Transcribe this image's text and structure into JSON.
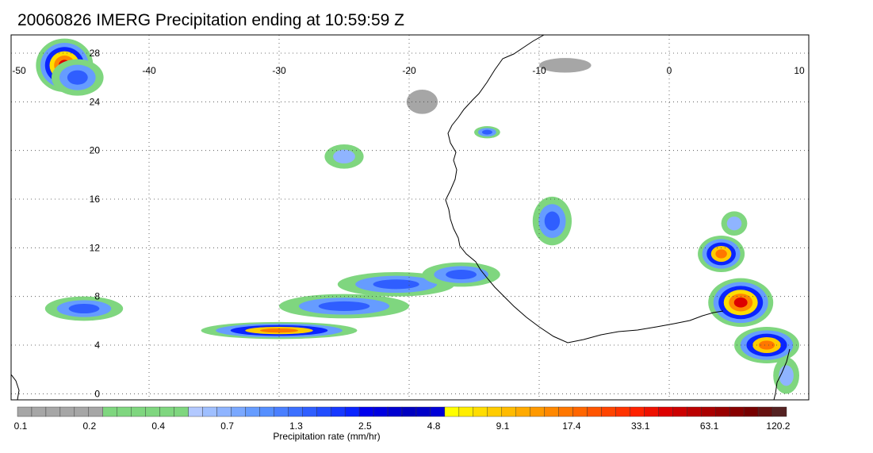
{
  "title": "20060826 IMERG Precipitation ending at 10:59:59 Z",
  "map": {
    "lon_range": [
      -50,
      10
    ],
    "lat_range": [
      -0.5,
      29.5
    ],
    "lon_ticks": [
      -50,
      -40,
      -30,
      -20,
      -10,
      0,
      10
    ],
    "lon_tick_labels": [
      "-50",
      "-40",
      "-30",
      "-20",
      "-10",
      "0",
      "10"
    ],
    "lat_ticks": [
      0,
      4,
      8,
      12,
      16,
      20,
      24,
      28
    ],
    "lat_tick_labels": [
      "0",
      "4",
      "8",
      "12",
      "16",
      "20",
      "24",
      "28"
    ],
    "grid": "dotted",
    "coastline_color": "#000000",
    "precip_cells": [
      {
        "lon": -46.5,
        "lat": 27.0,
        "intensity": 4,
        "rlon": 2.2,
        "rlat": 2.2
      },
      {
        "lon": -45.5,
        "lat": 26.0,
        "intensity": 2,
        "rlon": 2.0,
        "rlat": 1.5
      },
      {
        "lon": -30.0,
        "lat": 5.2,
        "intensity": 3,
        "rlon": 6.0,
        "rlat": 0.7
      },
      {
        "lon": -25.0,
        "lat": 7.2,
        "intensity": 2,
        "rlon": 5.0,
        "rlat": 1.0
      },
      {
        "lon": -21.0,
        "lat": 9.0,
        "intensity": 2,
        "rlon": 4.5,
        "rlat": 1.0
      },
      {
        "lon": -16.0,
        "lat": 9.8,
        "intensity": 2,
        "rlon": 3.0,
        "rlat": 1.0
      },
      {
        "lon": -45.0,
        "lat": 7.0,
        "intensity": 2,
        "rlon": 3.0,
        "rlat": 1.0
      },
      {
        "lon": -9.0,
        "lat": 14.2,
        "intensity": 2,
        "rlon": 1.5,
        "rlat": 2.0
      },
      {
        "lon": -25.0,
        "lat": 19.5,
        "intensity": 1,
        "rlon": 1.5,
        "rlat": 1.0
      },
      {
        "lon": -19.0,
        "lat": 24.0,
        "intensity": 0,
        "rlon": 1.2,
        "rlat": 1.0
      },
      {
        "lon": -14.0,
        "lat": 21.5,
        "intensity": 2,
        "rlon": 1.0,
        "rlat": 0.5
      },
      {
        "lon": -8.0,
        "lat": 27.0,
        "intensity": 0,
        "rlon": 2.0,
        "rlat": 0.6
      },
      {
        "lon": 5.5,
        "lat": 7.5,
        "intensity": 4,
        "rlon": 2.5,
        "rlat": 2.0
      },
      {
        "lon": 4.0,
        "lat": 11.5,
        "intensity": 3,
        "rlon": 1.8,
        "rlat": 1.5
      },
      {
        "lon": 7.5,
        "lat": 4.0,
        "intensity": 3,
        "rlon": 2.5,
        "rlat": 1.5
      },
      {
        "lon": 5.0,
        "lat": 14.0,
        "intensity": 1,
        "rlon": 1.0,
        "rlat": 1.0
      },
      {
        "lon": 9.0,
        "lat": 1.5,
        "intensity": 1,
        "rlon": 1.0,
        "rlat": 1.5
      }
    ]
  },
  "colorbar": {
    "title": "Precipitation rate (mm/hr)",
    "tick_labels": [
      "0.1",
      "0.2",
      "0.4",
      "0.7",
      "1.3",
      "2.5",
      "4.8",
      "9.1",
      "17.4",
      "33.1",
      "63.1",
      "120.2"
    ],
    "colors": [
      "#a6a6a6",
      "#a6a6a6",
      "#a6a6a6",
      "#a6a6a6",
      "#a6a6a6",
      "#a6a6a6",
      "#7fd67f",
      "#7fd67f",
      "#7fd67f",
      "#7fd67f",
      "#7fd67f",
      "#7fd67f",
      "#b3c9ff",
      "#9fbfff",
      "#8fb4ff",
      "#7aa8ff",
      "#669cff",
      "#558fff",
      "#4a7fff",
      "#3c70ff",
      "#2f5eff",
      "#224dff",
      "#1638ff",
      "#0a24ff",
      "#0000ee",
      "#0000e0",
      "#0000d0",
      "#0000c0",
      "#0000c8",
      "#0000d8",
      "#ffff00",
      "#ffee00",
      "#ffdd00",
      "#ffcc00",
      "#ffbb00",
      "#ffaa00",
      "#ff9900",
      "#ff8800",
      "#ff7700",
      "#ff6600",
      "#ff5500",
      "#ff4400",
      "#ff3300",
      "#ff2200",
      "#ee1100",
      "#dd0000",
      "#cc0000",
      "#bb0000",
      "#aa0000",
      "#990000",
      "#880000",
      "#770000",
      "#661111",
      "#552222"
    ]
  }
}
